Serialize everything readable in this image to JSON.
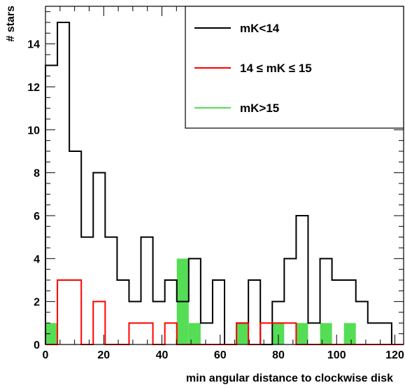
{
  "chart_data": {
    "type": "histogram",
    "title": "",
    "xlabel": "min angular distance to clockwise disk",
    "ylabel": "# stars",
    "xlim": [
      0,
      123
    ],
    "ylim": [
      0,
      15.75
    ],
    "bin_width": 4.1,
    "x_ticks": [
      0,
      20,
      40,
      60,
      80,
      100,
      120
    ],
    "y_ticks": [
      0,
      2,
      4,
      6,
      8,
      10,
      12,
      14
    ],
    "legend_position": "top-right",
    "series": [
      {
        "name": "mK<14",
        "style": "outline",
        "color": "#000000",
        "values": [
          13,
          15,
          9,
          5,
          8,
          5,
          3,
          2,
          5,
          2,
          3,
          2,
          4,
          1,
          3,
          0,
          1,
          3,
          0,
          2,
          4,
          6,
          1,
          4,
          3,
          3,
          2,
          1,
          1,
          0
        ]
      },
      {
        "name": "14 ≤ mK ≤ 15",
        "style": "outline",
        "color": "#ff0000",
        "values": [
          0,
          3,
          3,
          0,
          2,
          0,
          0,
          1,
          1,
          0,
          1,
          0,
          0,
          0,
          0,
          0,
          1,
          0,
          1,
          1,
          1,
          0,
          0,
          0,
          0,
          0,
          0,
          0,
          0,
          0
        ]
      },
      {
        "name": "mK>15",
        "style": "filled",
        "color": "#55dd55",
        "values": [
          1,
          0,
          0,
          0,
          0,
          0,
          0,
          0,
          0,
          0,
          0,
          4,
          1,
          0,
          0,
          0,
          1,
          0,
          0,
          1,
          0,
          1,
          0,
          1,
          0,
          1,
          0,
          0,
          0,
          0
        ]
      }
    ]
  }
}
